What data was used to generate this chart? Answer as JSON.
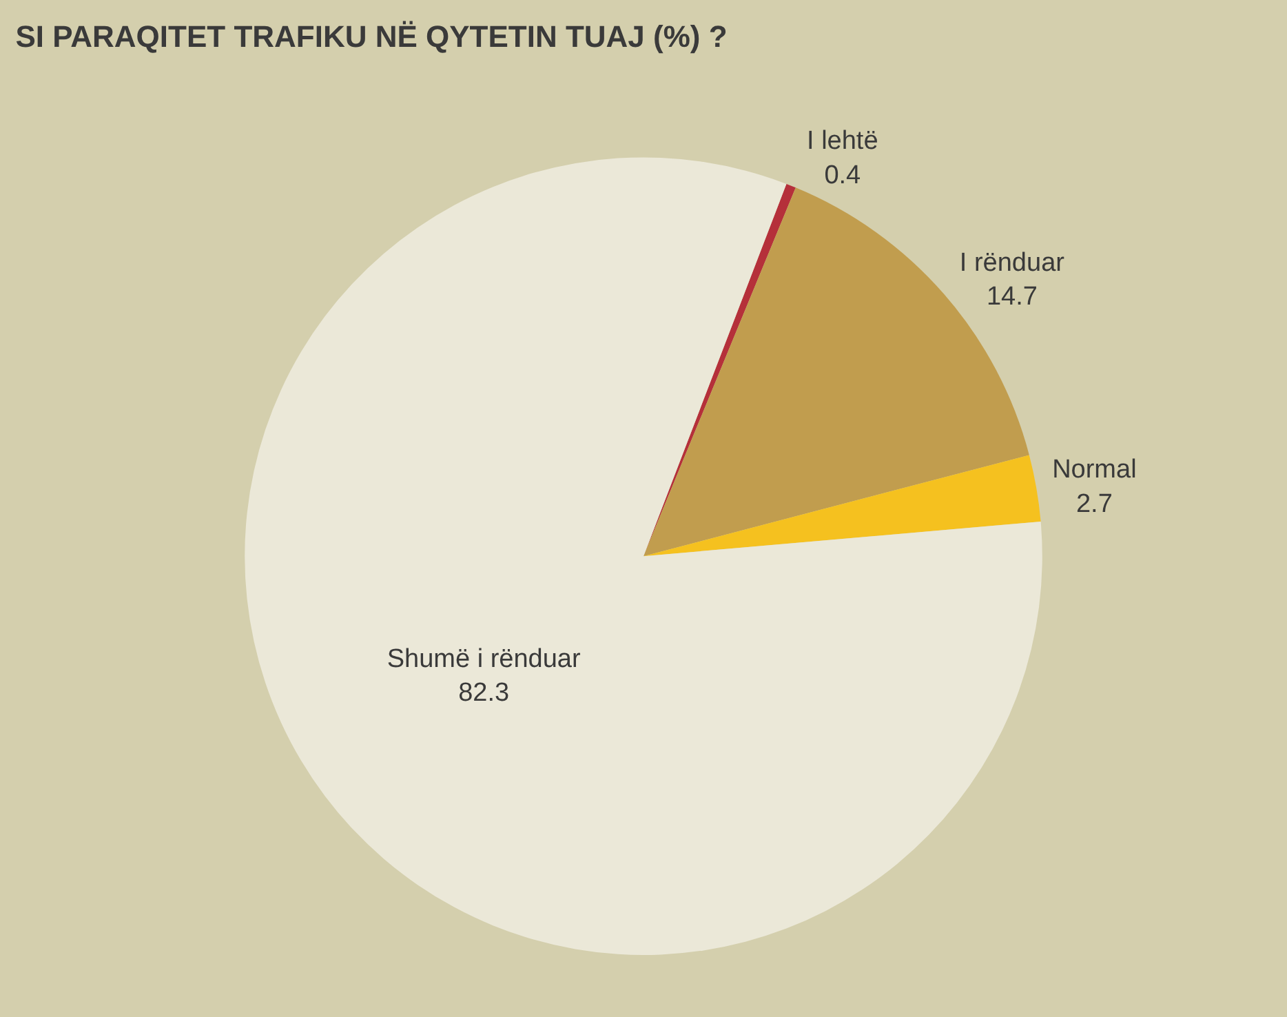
{
  "chart_data": {
    "type": "pie",
    "title": "SI PARAQITET TRAFIKU NË QYTETIN TUAJ (%) ?",
    "categories": [
      "I lehtë",
      "I rënduar",
      "Normal",
      "Shumë i rënduar"
    ],
    "values": [
      0.4,
      14.7,
      2.7,
      82.3
    ],
    "colors": [
      "#b5303a",
      "#c19d4e",
      "#f5c11f",
      "#ebe8d8"
    ],
    "data_labels": true,
    "legend": false
  }
}
